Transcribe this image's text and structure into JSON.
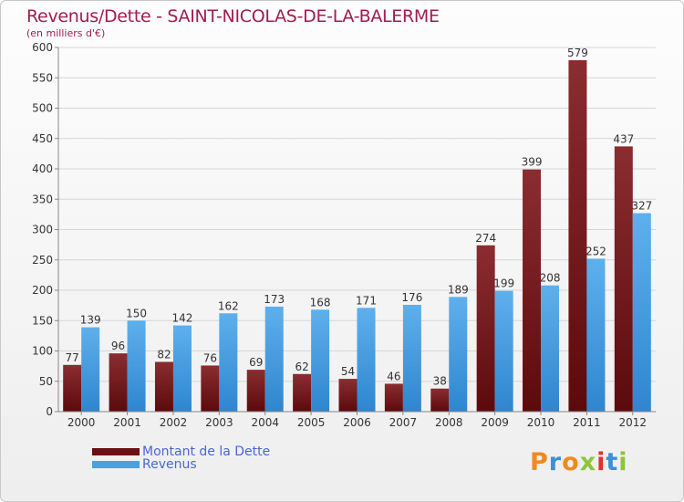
{
  "title": "Revenus/Dette - SAINT-NICOLAS-DE-LA-BALERME",
  "subtitle": "(en milliers d'€)",
  "colors": {
    "dette": "#7a1c1f",
    "revenus": "#4aa1e2",
    "title": "#a11d4f",
    "legend_text": "#4a66d6"
  },
  "legend": [
    {
      "label": "Montant de la Dette",
      "color": "#6a0f12"
    },
    {
      "label": "Revenus",
      "color": "#4aa1e2"
    }
  ],
  "logo": {
    "letters": [
      "P",
      "r",
      "o",
      "x",
      "i",
      "t",
      "i"
    ],
    "colors": [
      "#f08a1e",
      "#3d8fd6",
      "#f08a1e",
      "#8fc43d",
      "#e2312b",
      "#3d8fd6",
      "#8fc43d"
    ]
  },
  "chart_data": {
    "type": "bar",
    "categories": [
      "2000",
      "2001",
      "2002",
      "2003",
      "2004",
      "2005",
      "2006",
      "2007",
      "2008",
      "2009",
      "2010",
      "2011",
      "2012"
    ],
    "series": [
      {
        "name": "Montant de la Dette",
        "values": [
          77,
          96,
          82,
          76,
          69,
          62,
          54,
          46,
          38,
          274,
          399,
          579,
          437
        ]
      },
      {
        "name": "Revenus",
        "values": [
          139,
          150,
          142,
          162,
          173,
          168,
          171,
          176,
          189,
          199,
          208,
          252,
          327
        ]
      }
    ],
    "ylim": [
      0,
      600
    ],
    "yticks": [
      0,
      50,
      100,
      150,
      200,
      250,
      300,
      350,
      400,
      450,
      500,
      550,
      600
    ],
    "grid": true,
    "legend_position": "bottom-left"
  }
}
